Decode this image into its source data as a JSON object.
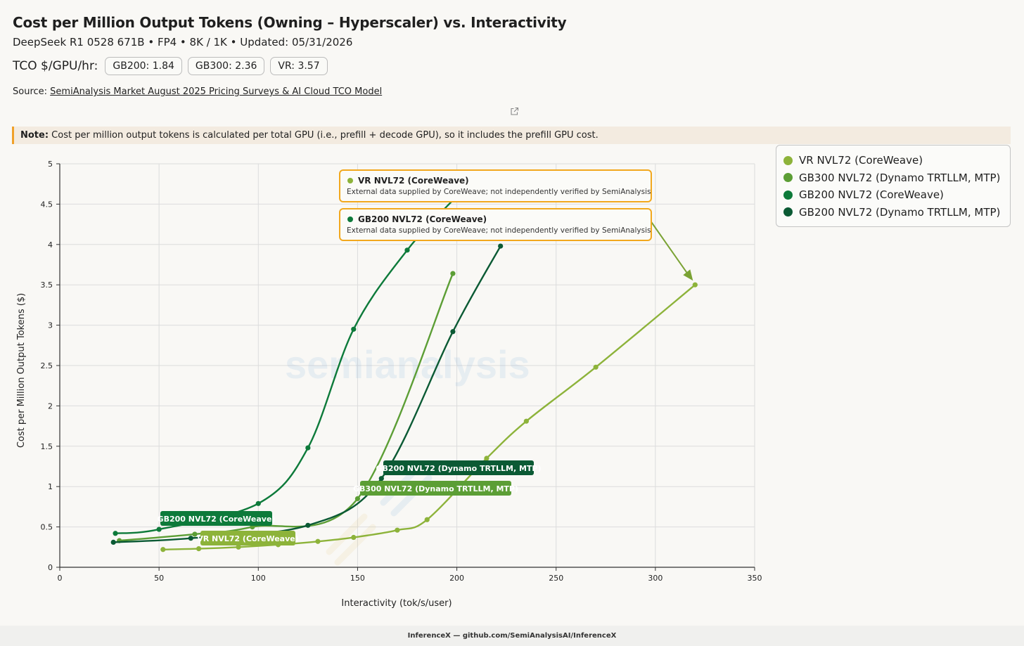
{
  "header": {
    "title": "Cost per Million Output Tokens (Owning – Hyperscaler) vs. Interactivity",
    "subtitle": "DeepSeek R1 0528 671B • FP4 • 8K / 1K • Updated: 05/31/2026",
    "tco_label": "TCO $/GPU/hr:",
    "tco_pills": [
      "GB200: 1.84",
      "GB300: 2.36",
      "VR: 3.57"
    ],
    "source_prefix": "Source: ",
    "source_link": "SemiAnalysis Market August 2025 Pricing Surveys & AI Cloud TCO Model"
  },
  "note": {
    "label": "Note:",
    "text": " Cost per million output tokens is calculated per total GPU (i.e., prefill + decode GPU), so it includes the prefill GPU cost."
  },
  "icons": {
    "external_link": "external-link-icon"
  },
  "watermark": "semianalysis",
  "footer": "InferenceX — github.com/SemiAnalysisAI/InferenceX",
  "chart_data": {
    "type": "line",
    "xlabel": "Interactivity (tok/s/user)",
    "ylabel": "Cost per Million Output Tokens ($)",
    "xlim": [
      0,
      350
    ],
    "ylim": [
      0,
      5
    ],
    "xticks": [
      0,
      50,
      100,
      150,
      200,
      250,
      300,
      350
    ],
    "yticks": [
      0,
      0.5,
      1,
      1.5,
      2,
      2.5,
      3,
      3.5,
      4,
      4.5,
      5
    ],
    "ytick_labels": [
      "0",
      "0.5",
      "1",
      "1.5",
      "2",
      "2.5",
      "3",
      "3.5",
      "4",
      "4.5",
      "5"
    ],
    "grid": true,
    "legend_position": "right",
    "series": [
      {
        "name": "VR NVL72 (CoreWeave)",
        "color": "#8db33a",
        "x": [
          52,
          70,
          90,
          110,
          130,
          148,
          170,
          185,
          215,
          235,
          270,
          320
        ],
        "y": [
          0.22,
          0.23,
          0.25,
          0.28,
          0.32,
          0.37,
          0.46,
          0.59,
          1.35,
          1.81,
          2.48,
          3.5
        ],
        "label": "VR NVL72 (CoreWeave)"
      },
      {
        "name": "GB300 NVL72 (Dynamo TRTLLM, MTP)",
        "color": "#5c9e35",
        "x": [
          30,
          68,
          97,
          150,
          198
        ],
        "y": [
          0.33,
          0.41,
          0.5,
          0.85,
          3.64
        ],
        "label": "GB300 NVL72 (Dynamo TRTLLM, MTP)"
      },
      {
        "name": "GB200 NVL72 (CoreWeave)",
        "color": "#0d7a3a",
        "x": [
          28,
          50,
          100,
          125,
          148,
          175,
          200
        ],
        "y": [
          0.42,
          0.47,
          0.79,
          1.48,
          2.95,
          3.93,
          4.6
        ],
        "label": "GB200 NVL72 (CoreWeave)"
      },
      {
        "name": "GB200 NVL72 (Dynamo TRTLLM, MTP)",
        "color": "#0b5a34",
        "x": [
          27,
          66,
          125,
          162,
          198,
          222
        ],
        "y": [
          0.31,
          0.36,
          0.52,
          1.1,
          2.92,
          3.98
        ],
        "label": "GB200 NVL72 (Dynamo TRTLLM, MTP)"
      }
    ],
    "callouts": [
      {
        "title": "VR NVL72 (CoreWeave)",
        "text": "External data supplied by CoreWeave; not independently verified by SemiAnalysis",
        "color": "#8db33a"
      },
      {
        "title": "GB200 NVL72 (CoreWeave)",
        "text": "External data supplied by CoreWeave; not independently verified by SemiAnalysis",
        "color": "#0d7a3a"
      }
    ]
  }
}
